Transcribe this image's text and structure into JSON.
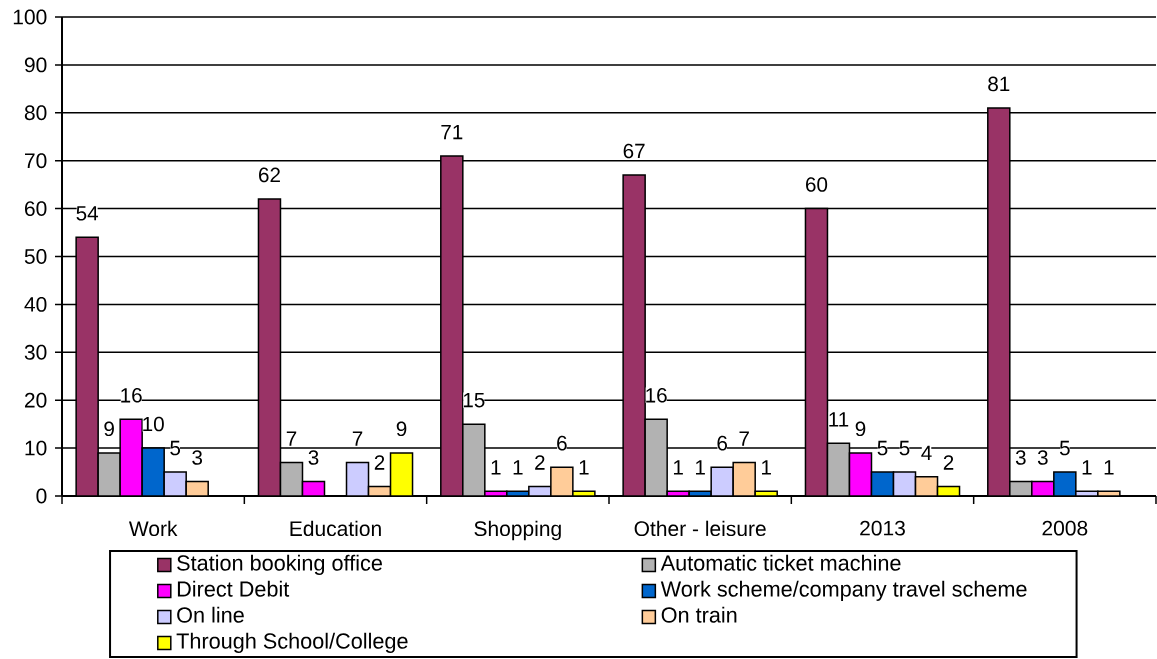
{
  "chart_data": {
    "type": "bar",
    "categories": [
      "Work",
      "Education",
      "Shopping",
      "Other - leisure",
      "2013",
      "2008"
    ],
    "series": [
      {
        "name": "Station booking office",
        "color": "#993366",
        "values": [
          54,
          62,
          71,
          67,
          60,
          81
        ]
      },
      {
        "name": "Automatic ticket machine",
        "color": "#b2b2b2",
        "values": [
          9,
          7,
          15,
          16,
          11,
          3
        ]
      },
      {
        "name": "Direct Debit",
        "color": "#ff00ff",
        "values": [
          16,
          3,
          1,
          1,
          9,
          3
        ]
      },
      {
        "name": "Work scheme/company travel scheme",
        "color": "#0066cc",
        "values": [
          10,
          null,
          1,
          1,
          5,
          5
        ]
      },
      {
        "name": "On line",
        "color": "#ccccff",
        "values": [
          5,
          7,
          2,
          6,
          5,
          1
        ]
      },
      {
        "name": "On train",
        "color": "#ffcc99",
        "values": [
          3,
          2,
          6,
          7,
          4,
          1
        ]
      },
      {
        "name": "Through School/College",
        "color": "#ffff00",
        "values": [
          null,
          9,
          1,
          1,
          2,
          null
        ]
      }
    ],
    "ylim": [
      0,
      100
    ],
    "yticks": [
      0,
      10,
      20,
      30,
      40,
      50,
      60,
      70,
      80,
      90,
      100
    ],
    "grid": "y",
    "legend": "bottom",
    "data_labels": true
  }
}
